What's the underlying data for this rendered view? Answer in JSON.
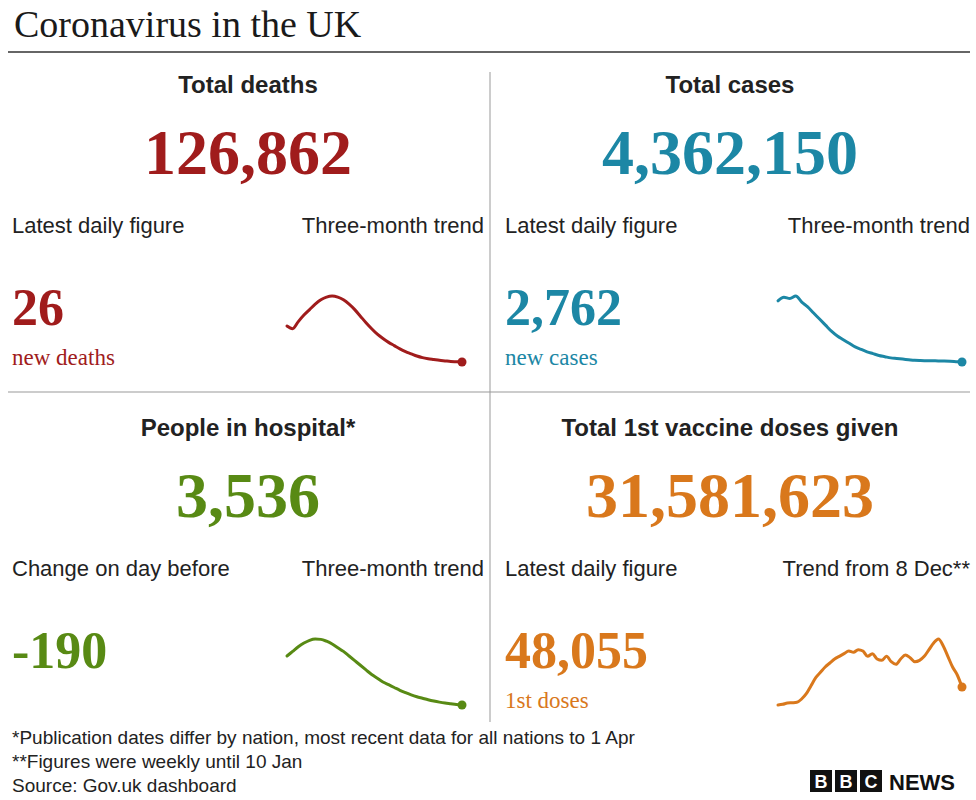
{
  "title": "Coronavirus in the UK",
  "footnotes": [
    "*Publication dates differ by nation, most recent data for all nations to 1 Apr",
    "**Figures were weekly until 10 Jan",
    "Source: Gov.uk dashboard"
  ],
  "logo_letters": "BBC",
  "logo_word": "NEWS",
  "chart_data": [
    {
      "type": "line",
      "title": "Total deaths",
      "total": "126,862",
      "daily_title": "Latest daily figure",
      "daily_value": "26",
      "daily_unit": "new deaths",
      "trend_title": "Three-month trend",
      "color": "#a01c1c",
      "tick_labels": false,
      "values": [
        700,
        650,
        780,
        900,
        1000,
        1100,
        1180,
        1230,
        1250,
        1230,
        1180,
        1100,
        1000,
        880,
        760,
        650,
        550,
        470,
        400,
        340,
        280,
        230,
        190,
        150,
        120,
        100,
        85,
        70,
        60,
        50,
        45,
        40
      ]
    },
    {
      "type": "line",
      "title": "Total cases",
      "total": "4,362,150",
      "daily_title": "Latest daily figure",
      "daily_value": "2,762",
      "daily_unit": "new cases",
      "trend_title": "Three-month trend",
      "color": "#1c87a5",
      "tick_labels": false,
      "values": [
        55000,
        58000,
        57000,
        59000,
        54000,
        50000,
        45000,
        40000,
        35000,
        30000,
        26000,
        23000,
        20000,
        17000,
        15000,
        13000,
        11500,
        10000,
        9000,
        8000,
        7500,
        7000,
        6500,
        6000,
        5800,
        5700,
        5600,
        5500,
        5400,
        5200,
        4900,
        4600
      ]
    },
    {
      "type": "line",
      "title": "People in hospital*",
      "total": "3,536",
      "daily_title": "Change on day before",
      "daily_value": "-190",
      "trend_title": "Three-month trend",
      "color": "#588a14",
      "tick_labels": false,
      "values": [
        30000,
        32500,
        35000,
        37000,
        38500,
        39200,
        39000,
        38000,
        36500,
        34500,
        32500,
        30000,
        27500,
        25000,
        22500,
        20000,
        18000,
        16000,
        14500,
        13000,
        11500,
        10200,
        9000,
        8000,
        7200,
        6400,
        5700,
        5100,
        4600,
        4200,
        3800,
        3536
      ]
    },
    {
      "type": "line",
      "title": "Total 1st vaccine doses given",
      "total": "31,581,623",
      "daily_title": "Latest daily figure",
      "daily_value": "48,055",
      "daily_unit": "1st doses",
      "trend_title": "Trend from 8 Dec**",
      "color": "#d9781c",
      "tick_labels": false,
      "values": [
        15000,
        20000,
        30000,
        32000,
        35000,
        60000,
        100000,
        160000,
        220000,
        260000,
        300000,
        330000,
        360000,
        380000,
        400000,
        420000,
        410000,
        430000,
        420000,
        380000,
        400000,
        360000,
        350000,
        380000,
        340000,
        320000,
        360000,
        390000,
        370000,
        340000,
        350000,
        380000,
        430000,
        480000,
        510000,
        460000,
        380000,
        300000,
        240000,
        150000
      ]
    }
  ]
}
